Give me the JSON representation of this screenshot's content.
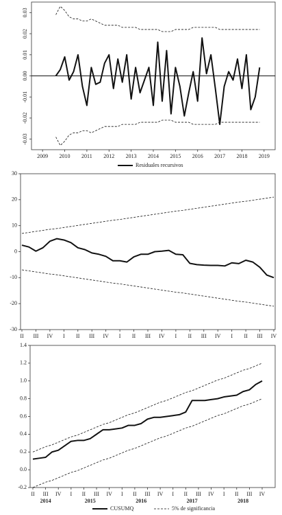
{
  "chart_data": [
    {
      "type": "line",
      "x": [
        2009.6,
        2009.8,
        2010.0,
        2010.2,
        2010.4,
        2010.6,
        2010.8,
        2011.0,
        2011.2,
        2011.4,
        2011.6,
        2011.8,
        2012.0,
        2012.2,
        2012.4,
        2012.6,
        2012.8,
        2013.0,
        2013.2,
        2013.4,
        2013.6,
        2013.8,
        2014.0,
        2014.2,
        2014.4,
        2014.6,
        2014.8,
        2015.0,
        2015.2,
        2015.4,
        2015.6,
        2015.8,
        2016.0,
        2016.2,
        2016.4,
        2016.6,
        2016.8,
        2017.0,
        2017.2,
        2017.4,
        2017.6,
        2017.8,
        2018.0,
        2018.2,
        2018.4,
        2018.6,
        2018.8
      ],
      "series": [
        {
          "name": "Residuales recursivos",
          "color": "#111111",
          "width": 2,
          "dash": false,
          "values": [
            0.0,
            0.003,
            0.009,
            -0.002,
            0.002,
            0.01,
            -0.005,
            -0.014,
            0.004,
            -0.004,
            -0.003,
            0.006,
            0.01,
            -0.006,
            0.008,
            -0.003,
            0.01,
            -0.011,
            0.004,
            -0.008,
            -0.002,
            0.004,
            -0.014,
            0.016,
            -0.012,
            0.012,
            -0.018,
            0.004,
            -0.005,
            -0.019,
            -0.008,
            0.002,
            -0.012,
            0.018,
            0.001,
            0.01,
            -0.006,
            -0.023,
            -0.005,
            0.002,
            -0.002,
            0.008,
            -0.006,
            0.01,
            -0.016,
            -0.01,
            0.004
          ]
        },
        {
          "color": "#111111",
          "width": 0.8,
          "dash": true,
          "values": [
            0.029,
            0.033,
            0.031,
            0.028,
            0.027,
            0.027,
            0.026,
            0.026,
            0.027,
            0.026,
            0.025,
            0.024,
            0.024,
            0.024,
            0.024,
            0.023,
            0.023,
            0.023,
            0.023,
            0.022,
            0.022,
            0.022,
            0.022,
            0.022,
            0.021,
            0.021,
            0.021,
            0.022,
            0.022,
            0.022,
            0.022,
            0.023,
            0.023,
            0.023,
            0.023,
            0.023,
            0.023,
            0.022,
            0.022,
            0.022,
            0.022,
            0.022,
            0.022,
            0.022,
            0.022,
            0.022,
            0.022
          ]
        },
        {
          "color": "#111111",
          "width": 0.8,
          "dash": true,
          "values": [
            -0.029,
            -0.033,
            -0.031,
            -0.028,
            -0.027,
            -0.027,
            -0.026,
            -0.026,
            -0.027,
            -0.026,
            -0.025,
            -0.024,
            -0.024,
            -0.024,
            -0.024,
            -0.023,
            -0.023,
            -0.023,
            -0.023,
            -0.022,
            -0.022,
            -0.022,
            -0.022,
            -0.022,
            -0.021,
            -0.021,
            -0.021,
            -0.022,
            -0.022,
            -0.022,
            -0.022,
            -0.023,
            -0.023,
            -0.023,
            -0.023,
            -0.023,
            -0.023,
            -0.022,
            -0.022,
            -0.022,
            -0.022,
            -0.022,
            -0.022,
            -0.022,
            -0.022,
            -0.022,
            -0.022
          ]
        }
      ],
      "xlim": [
        2008.5,
        2019.5
      ],
      "xticks": [
        2009,
        2010,
        2011,
        2012,
        2013,
        2014,
        2015,
        2016,
        2017,
        2018,
        2019
      ],
      "ylim": [
        -0.035,
        0.035
      ],
      "yticks": [
        -0.03,
        -0.02,
        -0.01,
        {
          "value": 0,
          "label": "0.00"
        },
        0.01,
        0.02,
        0.03
      ],
      "zero_line": true
    },
    {
      "type": "line",
      "categories": [
        "II",
        null,
        "III",
        null,
        "IV",
        null,
        "I",
        null,
        "II",
        null,
        "III",
        null,
        "IV",
        null,
        "I",
        null,
        "II",
        null,
        "III",
        null,
        "IV",
        null,
        "I",
        null,
        "II",
        null,
        "III",
        null,
        "IV",
        null,
        "I",
        null,
        "II",
        null,
        "III",
        null,
        "IV"
      ],
      "series": [
        {
          "color": "#111111",
          "width": 2,
          "dash": false,
          "values": [
            2.5,
            1.8,
            0.2,
            1.5,
            4.0,
            5.0,
            4.5,
            3.5,
            1.5,
            0.8,
            -0.5,
            -1.0,
            -1.8,
            -3.5,
            -3.5,
            -4.0,
            -2.0,
            -1.0,
            -1.0,
            0.0,
            0.2,
            0.5,
            -1.0,
            -1.2,
            -4.5,
            -5.0,
            -5.2,
            -5.3,
            -5.3,
            -5.5,
            -4.3,
            -4.6,
            -3.3,
            -4.0,
            -6.0,
            -9.0,
            -10.0
          ]
        },
        {
          "color": "#111111",
          "width": 0.8,
          "dash": true,
          "values": [
            7.0,
            7.4,
            7.8,
            8.2,
            8.6,
            8.9,
            9.3,
            9.7,
            10.1,
            10.5,
            10.9,
            11.3,
            11.7,
            12.1,
            12.4,
            12.8,
            13.2,
            13.6,
            14.0,
            14.4,
            14.8,
            15.2,
            15.6,
            15.9,
            16.3,
            16.7,
            17.1,
            17.5,
            17.9,
            18.3,
            18.7,
            19.1,
            19.4,
            19.8,
            20.2,
            20.6,
            21.0
          ]
        },
        {
          "color": "#111111",
          "width": 0.8,
          "dash": true,
          "values": [
            -7.0,
            -7.4,
            -7.8,
            -8.2,
            -8.6,
            -8.9,
            -9.3,
            -9.7,
            -10.1,
            -10.5,
            -10.9,
            -11.3,
            -11.7,
            -12.1,
            -12.4,
            -12.8,
            -13.2,
            -13.6,
            -14.0,
            -14.4,
            -14.8,
            -15.2,
            -15.6,
            -15.9,
            -16.3,
            -16.7,
            -17.1,
            -17.5,
            -17.9,
            -18.3,
            -18.7,
            -19.1,
            -19.4,
            -19.8,
            -20.2,
            -20.6,
            -21.0
          ]
        }
      ],
      "ylim": [
        -30,
        30
      ],
      "yticks": [
        -30,
        -20,
        -10,
        0,
        10,
        20,
        30
      ]
    },
    {
      "type": "line",
      "categories": [
        "II",
        null,
        "III",
        null,
        "IV",
        null,
        "I",
        null,
        "II",
        null,
        "III",
        null,
        "IV",
        null,
        "I",
        null,
        "II",
        null,
        "III",
        null,
        "IV",
        null,
        "I",
        null,
        "II",
        null,
        "III",
        null,
        "IV",
        null,
        "I",
        null,
        "II",
        null,
        "III",
        null,
        "IV"
      ],
      "years": [
        2014,
        2015,
        2016,
        2017,
        2018
      ],
      "series": [
        {
          "name": "CUSUMQ",
          "color": "#111111",
          "width": 2,
          "dash": false,
          "values": [
            0.12,
            0.13,
            0.14,
            0.2,
            0.22,
            0.27,
            0.32,
            0.33,
            0.33,
            0.35,
            0.4,
            0.45,
            0.45,
            0.46,
            0.47,
            0.5,
            0.5,
            0.52,
            0.57,
            0.59,
            0.59,
            0.6,
            0.61,
            0.62,
            0.65,
            0.78,
            0.78,
            0.78,
            0.79,
            0.8,
            0.82,
            0.83,
            0.84,
            0.88,
            0.9,
            0.96,
            1.0
          ]
        },
        {
          "name": "5% de significancia",
          "color": "#111111",
          "width": 0.8,
          "dash": true,
          "values": [
            0.2,
            0.23,
            0.26,
            0.28,
            0.31,
            0.34,
            0.37,
            0.39,
            0.42,
            0.45,
            0.48,
            0.51,
            0.53,
            0.56,
            0.59,
            0.62,
            0.64,
            0.67,
            0.7,
            0.73,
            0.76,
            0.78,
            0.81,
            0.84,
            0.87,
            0.89,
            0.92,
            0.95,
            0.98,
            1.01,
            1.03,
            1.06,
            1.09,
            1.12,
            1.14,
            1.17,
            1.2
          ]
        },
        {
          "color": "#111111",
          "width": 0.8,
          "dash": true,
          "values": [
            -0.2,
            -0.17,
            -0.14,
            -0.12,
            -0.09,
            -0.06,
            -0.03,
            -0.01,
            0.02,
            0.05,
            0.08,
            0.11,
            0.13,
            0.16,
            0.19,
            0.22,
            0.24,
            0.27,
            0.3,
            0.33,
            0.36,
            0.38,
            0.41,
            0.44,
            0.47,
            0.49,
            0.52,
            0.55,
            0.58,
            0.61,
            0.63,
            0.66,
            0.69,
            0.72,
            0.74,
            0.77,
            0.8
          ]
        }
      ],
      "ylim": [
        -0.2,
        1.4
      ],
      "yticks": [
        -0.2,
        {
          "value": 0,
          "label": "0.0"
        },
        0.2,
        0.4,
        0.6,
        0.8,
        {
          "value": 1,
          "label": "1.0"
        },
        1.2,
        1.4
      ]
    }
  ]
}
